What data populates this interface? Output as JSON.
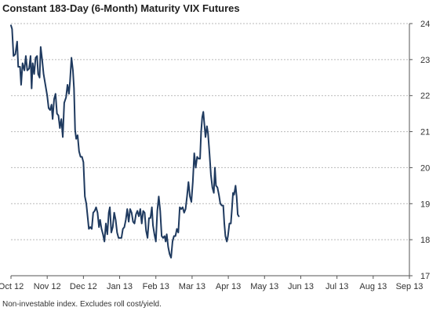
{
  "header": {
    "title": "Constant 183-Day (6-Month) Maturity VIX Futures"
  },
  "footer": {
    "note": "Non-investable index. Excludes roll cost/yield."
  },
  "colors": {
    "line": "#1f3a5f",
    "grid": "#b9b9b9",
    "axis": "#555555"
  },
  "chart_data": {
    "type": "line",
    "title": "Constant 183-Day (6-Month) Maturity VIX Futures",
    "xlabel": "",
    "ylabel": "",
    "ylim": [
      17,
      24
    ],
    "yticks": [
      17,
      18,
      19,
      20,
      21,
      22,
      23,
      24
    ],
    "y_axis_side": "right",
    "grid": "horizontal dashed",
    "legend": "none",
    "xticks": [
      {
        "label": "Oct 12",
        "x": 0
      },
      {
        "label": "Nov 12",
        "x": 1
      },
      {
        "label": "Dec 12",
        "x": 2
      },
      {
        "label": "Jan 13",
        "x": 3
      },
      {
        "label": "Feb 13",
        "x": 4
      },
      {
        "label": "Mar 13",
        "x": 5
      },
      {
        "label": "Apr 13",
        "x": 6
      },
      {
        "label": "May 13",
        "x": 7
      },
      {
        "label": "Jun 13",
        "x": 8
      },
      {
        "label": "Jul 13",
        "x": 9
      },
      {
        "label": "Aug 13",
        "x": 10
      },
      {
        "label": "Sep 13",
        "x": 11
      }
    ],
    "series": [
      {
        "points": [
          [
            0.0,
            23.95
          ],
          [
            0.03,
            23.85
          ],
          [
            0.07,
            23.1
          ],
          [
            0.12,
            23.15
          ],
          [
            0.17,
            23.5
          ],
          [
            0.2,
            22.8
          ],
          [
            0.25,
            22.8
          ],
          [
            0.28,
            22.3
          ],
          [
            0.32,
            22.9
          ],
          [
            0.37,
            22.7
          ],
          [
            0.41,
            23.1
          ],
          [
            0.45,
            22.7
          ],
          [
            0.5,
            22.75
          ],
          [
            0.54,
            23.1
          ],
          [
            0.57,
            22.2
          ],
          [
            0.6,
            22.9
          ],
          [
            0.64,
            22.6
          ],
          [
            0.68,
            23.05
          ],
          [
            0.72,
            23.1
          ],
          [
            0.75,
            22.6
          ],
          [
            0.79,
            22.5
          ],
          [
            0.82,
            23.35
          ],
          [
            0.86,
            23.0
          ],
          [
            0.9,
            22.6
          ],
          [
            0.95,
            22.3
          ],
          [
            1.0,
            22.0
          ],
          [
            1.04,
            21.65
          ],
          [
            1.08,
            21.6
          ],
          [
            1.12,
            21.75
          ],
          [
            1.15,
            21.35
          ],
          [
            1.19,
            21.9
          ],
          [
            1.23,
            22.05
          ],
          [
            1.27,
            21.5
          ],
          [
            1.31,
            21.45
          ],
          [
            1.35,
            21.1
          ],
          [
            1.39,
            21.35
          ],
          [
            1.43,
            20.85
          ],
          [
            1.47,
            21.8
          ],
          [
            1.52,
            21.95
          ],
          [
            1.56,
            22.3
          ],
          [
            1.6,
            22.05
          ],
          [
            1.63,
            22.4
          ],
          [
            1.67,
            23.05
          ],
          [
            1.71,
            22.7
          ],
          [
            1.74,
            22.2
          ],
          [
            1.77,
            21.05
          ],
          [
            1.8,
            20.8
          ],
          [
            1.84,
            20.9
          ],
          [
            1.88,
            20.45
          ],
          [
            1.92,
            20.3
          ],
          [
            1.96,
            20.3
          ],
          [
            2.0,
            20.15
          ],
          [
            2.04,
            19.2
          ],
          [
            2.08,
            19.0
          ],
          [
            2.12,
            18.6
          ],
          [
            2.15,
            18.3
          ],
          [
            2.19,
            18.35
          ],
          [
            2.23,
            18.3
          ],
          [
            2.27,
            18.75
          ],
          [
            2.31,
            18.8
          ],
          [
            2.35,
            18.9
          ],
          [
            2.39,
            18.75
          ],
          [
            2.43,
            18.35
          ],
          [
            2.46,
            18.55
          ],
          [
            2.5,
            18.3
          ],
          [
            2.54,
            18.15
          ],
          [
            2.58,
            17.95
          ],
          [
            2.62,
            18.45
          ],
          [
            2.66,
            18.15
          ],
          [
            2.7,
            18.75
          ],
          [
            2.73,
            18.9
          ],
          [
            2.77,
            18.2
          ],
          [
            2.81,
            18.35
          ],
          [
            2.85,
            18.75
          ],
          [
            2.89,
            18.55
          ],
          [
            2.93,
            18.2
          ],
          [
            2.97,
            18.05
          ],
          [
            3.01,
            18.05
          ],
          [
            3.05,
            18.05
          ],
          [
            3.09,
            18.3
          ],
          [
            3.13,
            18.35
          ],
          [
            3.17,
            18.55
          ],
          [
            3.21,
            18.85
          ],
          [
            3.25,
            18.5
          ],
          [
            3.29,
            18.85
          ],
          [
            3.33,
            18.75
          ],
          [
            3.37,
            18.5
          ],
          [
            3.41,
            18.45
          ],
          [
            3.45,
            18.7
          ],
          [
            3.49,
            18.8
          ],
          [
            3.53,
            18.65
          ],
          [
            3.57,
            18.85
          ],
          [
            3.61,
            18.45
          ],
          [
            3.65,
            18.8
          ],
          [
            3.69,
            18.75
          ],
          [
            3.73,
            18.25
          ],
          [
            3.77,
            18.05
          ],
          [
            3.81,
            18.6
          ],
          [
            3.85,
            18.6
          ],
          [
            3.89,
            18.9
          ],
          [
            3.92,
            18.4
          ],
          [
            3.96,
            18.15
          ],
          [
            4.0,
            17.95
          ],
          [
            4.04,
            18.8
          ],
          [
            4.08,
            19.2
          ],
          [
            4.12,
            18.8
          ],
          [
            4.16,
            18.1
          ],
          [
            4.2,
            18.05
          ],
          [
            4.24,
            18.1
          ],
          [
            4.27,
            17.95
          ],
          [
            4.3,
            18.15
          ],
          [
            4.34,
            17.8
          ],
          [
            4.38,
            17.6
          ],
          [
            4.42,
            17.5
          ],
          [
            4.46,
            17.95
          ],
          [
            4.5,
            18.1
          ],
          [
            4.54,
            18.1
          ],
          [
            4.58,
            18.3
          ],
          [
            4.62,
            18.2
          ],
          [
            4.66,
            18.9
          ],
          [
            4.7,
            18.85
          ],
          [
            4.74,
            18.9
          ],
          [
            4.78,
            18.75
          ],
          [
            4.82,
            18.85
          ],
          [
            4.86,
            19.2
          ],
          [
            4.9,
            19.6
          ],
          [
            4.94,
            19.2
          ],
          [
            4.98,
            19.05
          ],
          [
            5.02,
            19.6
          ],
          [
            5.06,
            20.4
          ],
          [
            5.1,
            20.0
          ],
          [
            5.14,
            20.3
          ],
          [
            5.18,
            20.25
          ],
          [
            5.22,
            20.25
          ],
          [
            5.25,
            21.0
          ],
          [
            5.28,
            21.4
          ],
          [
            5.31,
            21.55
          ],
          [
            5.34,
            21.2
          ],
          [
            5.37,
            20.85
          ],
          [
            5.41,
            21.15
          ],
          [
            5.44,
            20.95
          ],
          [
            5.48,
            20.4
          ],
          [
            5.52,
            19.8
          ],
          [
            5.56,
            19.45
          ],
          [
            5.6,
            19.3
          ],
          [
            5.63,
            20.0
          ],
          [
            5.66,
            19.5
          ],
          [
            5.7,
            19.45
          ],
          [
            5.74,
            19.25
          ],
          [
            5.78,
            19.0
          ],
          [
            5.82,
            18.95
          ],
          [
            5.86,
            18.95
          ],
          [
            5.89,
            18.45
          ],
          [
            5.92,
            18.1
          ],
          [
            5.96,
            17.95
          ],
          [
            5.99,
            18.1
          ],
          [
            6.03,
            18.45
          ],
          [
            6.07,
            18.45
          ],
          [
            6.1,
            18.85
          ],
          [
            6.13,
            19.3
          ],
          [
            6.16,
            19.25
          ],
          [
            6.2,
            19.5
          ],
          [
            6.23,
            19.2
          ],
          [
            6.26,
            18.7
          ],
          [
            6.29,
            18.65
          ]
        ]
      }
    ]
  }
}
